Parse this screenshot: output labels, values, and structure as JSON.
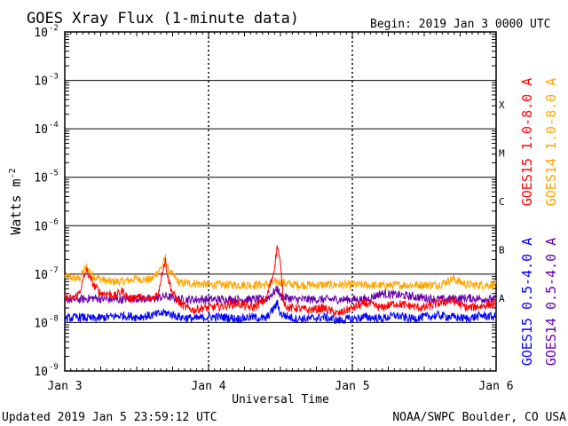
{
  "chart_data": {
    "type": "line",
    "title": "GOES Xray Flux (1-minute data)",
    "begin_label": "Begin:  2019 Jan 3 0000 UTC",
    "xlabel": "Universal Time",
    "ylabel_base": "Watts m",
    "ylabel_exp": "-2",
    "x_ticks": [
      "Jan 3",
      "Jan 4",
      "Jan 5",
      "Jan 6"
    ],
    "x_range_days": [
      0,
      3
    ],
    "y_scale": "log",
    "ylim": [
      1e-09,
      0.01
    ],
    "y_ticks": [
      {
        "base": "10",
        "exp": "-2"
      },
      {
        "base": "10",
        "exp": "-3"
      },
      {
        "base": "10",
        "exp": "-4"
      },
      {
        "base": "10",
        "exp": "-5"
      },
      {
        "base": "10",
        "exp": "-6"
      },
      {
        "base": "10",
        "exp": "-7"
      },
      {
        "base": "10",
        "exp": "-8"
      },
      {
        "base": "10",
        "exp": "-9"
      }
    ],
    "flare_classes": [
      {
        "label": "X",
        "min": 0.0001
      },
      {
        "label": "M",
        "min": 1e-05
      },
      {
        "label": "C",
        "min": 1e-06
      },
      {
        "label": "B",
        "min": 1e-07
      },
      {
        "label": "A",
        "min": 1e-08
      }
    ],
    "grid": true,
    "series": [
      {
        "name": "GOES15 1.0-8.0 A",
        "color": "#ff0000",
        "x": [
          0,
          0.05,
          0.1,
          0.15,
          0.2,
          0.25,
          0.3,
          0.35,
          0.4,
          0.45,
          0.5,
          0.55,
          0.6,
          0.65,
          0.68,
          0.7,
          0.72,
          0.75,
          0.8,
          0.85,
          0.9,
          0.95,
          1.0,
          1.1,
          1.2,
          1.3,
          1.4,
          1.45,
          1.48,
          1.5,
          1.52,
          1.55,
          1.6,
          1.7,
          1.8,
          1.9,
          2.0,
          2.1,
          2.2,
          2.3,
          2.4,
          2.5,
          2.6,
          2.7,
          2.8,
          2.9,
          3.0
        ],
        "values": [
          3.5e-08,
          3e-08,
          4e-08,
          1.2e-07,
          6e-08,
          4e-08,
          4e-08,
          3.5e-08,
          4.5e-08,
          3e-08,
          3.5e-08,
          3e-08,
          3e-08,
          4e-08,
          1.2e-07,
          1.9e-07,
          8e-08,
          4e-08,
          2.5e-08,
          2e-08,
          1.8e-08,
          2e-08,
          2e-08,
          2.2e-08,
          2.5e-08,
          2e-08,
          3e-08,
          1e-07,
          4e-07,
          1.5e-07,
          3e-08,
          2e-08,
          2e-08,
          1.8e-08,
          2e-08,
          1.5e-08,
          2e-08,
          2.5e-08,
          2e-08,
          2.5e-08,
          2.2e-08,
          2e-08,
          2.5e-08,
          2.8e-08,
          2e-08,
          2.2e-08,
          2.5e-08
        ]
      },
      {
        "name": "GOES14 1.0-8.0 A",
        "color": "#ffa500",
        "x": [
          0,
          0.1,
          0.15,
          0.2,
          0.3,
          0.4,
          0.5,
          0.6,
          0.68,
          0.7,
          0.72,
          0.8,
          0.9,
          1.0,
          1.2,
          1.4,
          1.48,
          1.6,
          1.8,
          2.0,
          2.2,
          2.4,
          2.6,
          2.7,
          2.8,
          3.0
        ],
        "values": [
          9e-08,
          8e-08,
          1.4e-07,
          9e-08,
          7e-08,
          7e-08,
          8e-08,
          7.5e-08,
          1.5e-07,
          2.2e-07,
          1.2e-07,
          6.5e-08,
          6.5e-08,
          6e-08,
          6e-08,
          6e-08,
          7e-08,
          6e-08,
          6e-08,
          6e-08,
          5.8e-08,
          6e-08,
          6e-08,
          8e-08,
          6e-08,
          6e-08
        ]
      },
      {
        "name": "GOES15 0.5-4.0 A",
        "color": "#0000ff",
        "x": [
          0,
          0.1,
          0.2,
          0.3,
          0.4,
          0.5,
          0.6,
          0.7,
          0.8,
          0.9,
          1.0,
          1.1,
          1.2,
          1.3,
          1.4,
          1.48,
          1.5,
          1.6,
          1.7,
          1.8,
          1.9,
          2.0,
          2.1,
          2.2,
          2.3,
          2.4,
          2.5,
          2.6,
          2.7,
          2.8,
          2.9,
          3.0
        ],
        "values": [
          1.2e-08,
          1.3e-08,
          1.2e-08,
          1.3e-08,
          1.4e-08,
          1.3e-08,
          1.4e-08,
          1.6e-08,
          1.3e-08,
          1.2e-08,
          1.3e-08,
          1.3e-08,
          1.2e-08,
          1.3e-08,
          1.2e-08,
          2.5e-08,
          1.5e-08,
          1.2e-08,
          1.2e-08,
          1.3e-08,
          1.1e-08,
          1.2e-08,
          1.3e-08,
          1.2e-08,
          1.4e-08,
          1.2e-08,
          1.3e-08,
          1.4e-08,
          1.3e-08,
          1.2e-08,
          1.4e-08,
          1.3e-08
        ]
      },
      {
        "name": "GOES14 0.5-4.0 A",
        "color": "#6600aa",
        "x": [
          0,
          0.1,
          0.2,
          0.3,
          0.4,
          0.5,
          0.6,
          0.7,
          0.8,
          0.9,
          1.0,
          1.2,
          1.4,
          1.48,
          1.5,
          1.6,
          1.8,
          2.0,
          2.1,
          2.2,
          2.4,
          2.6,
          2.8,
          3.0
        ],
        "values": [
          3e-08,
          3e-08,
          3.2e-08,
          3e-08,
          3e-08,
          3.2e-08,
          3e-08,
          3.5e-08,
          3e-08,
          3e-08,
          3e-08,
          3e-08,
          3e-08,
          5e-08,
          3.5e-08,
          3e-08,
          3e-08,
          3e-08,
          3e-08,
          4e-08,
          3.5e-08,
          3e-08,
          3.2e-08,
          3e-08
        ]
      }
    ]
  },
  "footer": {
    "updated": "Updated 2019 Jan  5 23:59:12 UTC",
    "credit": "NOAA/SWPC Boulder, CO USA"
  }
}
